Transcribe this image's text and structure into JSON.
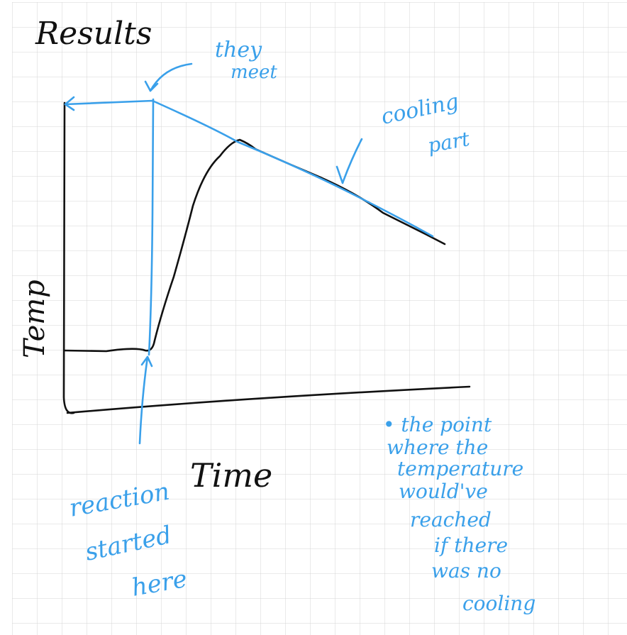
{
  "title": "Results",
  "axes": {
    "y_label": "Temp",
    "x_label": "Time"
  },
  "annotations": {
    "they_meet": [
      "they",
      "meet"
    ],
    "cooling_part": [
      "cooling",
      "part"
    ],
    "reaction_started": [
      "reaction",
      "started",
      "here"
    ],
    "note": [
      "• the point",
      "where the",
      "temperature",
      "would've",
      "reached",
      "if there",
      "was no",
      "cooling"
    ]
  },
  "colors": {
    "ink": "#111111",
    "annotation": "#3aa0ea",
    "grid": "#d4d4d4",
    "paper": "#ffffff"
  },
  "checkmark": "check-icon"
}
